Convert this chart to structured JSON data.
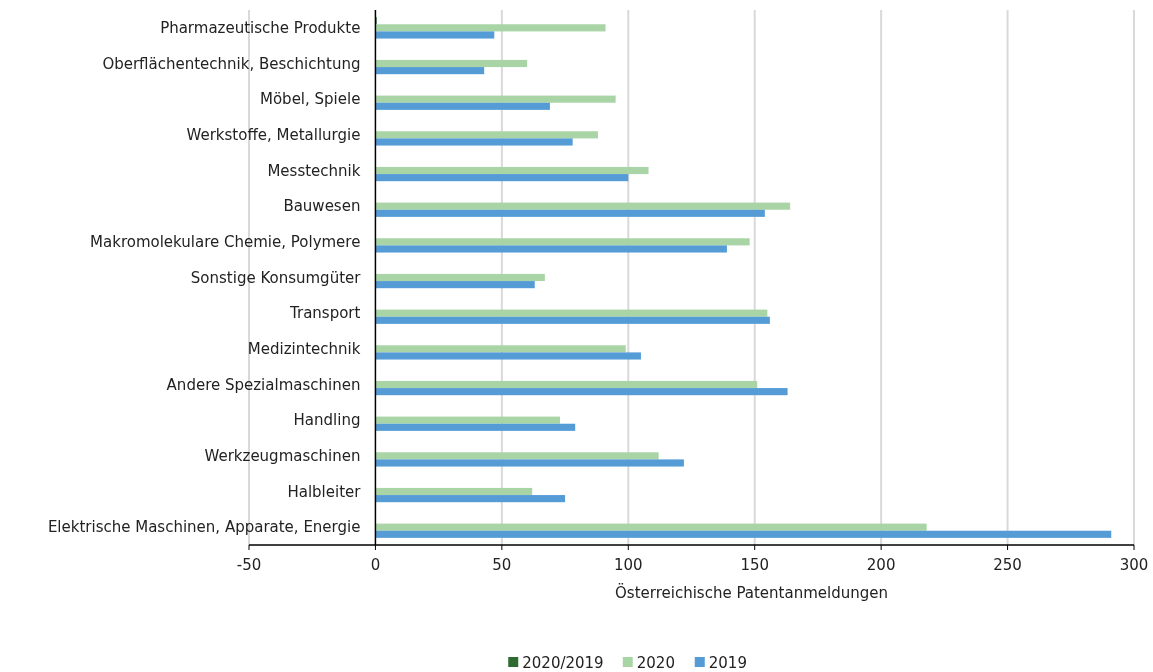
{
  "chart_data": {
    "type": "bar",
    "orientation": "horizontal",
    "xlabel": "Österreichische Patentanmeldungen",
    "categories": [
      "Pharmazeutische Produkte",
      "Oberflächentechnik, Beschichtung",
      "Möbel, Spiele",
      "Werkstoffe, Metallurgie",
      "Messtechnik",
      "Bauwesen",
      "Makromolekulare Chemie, Polymere",
      "Sonstige Konsumgüter",
      "Transport",
      "Medizintechnik",
      "Andere Spezialmaschinen",
      "Handling",
      "Werkzeugmaschinen",
      "Halbleiter",
      "Elektrische Maschinen, Apparate, Energie"
    ],
    "series": [
      {
        "name": "2020/2019",
        "color": "#2e6b30",
        "values": [
          0.5,
          null,
          null,
          null,
          null,
          null,
          null,
          null,
          null,
          null,
          null,
          null,
          null,
          null,
          null
        ]
      },
      {
        "name": "2020",
        "color": "#a9d5a6",
        "values": [
          91,
          60,
          95,
          88,
          108,
          164,
          148,
          67,
          155,
          99,
          151,
          73,
          112,
          62,
          218
        ]
      },
      {
        "name": "2019",
        "color": "#559bd6",
        "values": [
          47,
          43,
          69,
          78,
          100,
          154,
          139,
          63,
          156,
          105,
          163,
          79,
          122,
          75,
          291
        ]
      }
    ],
    "xlim": [
      -50,
      300
    ],
    "xticks": [
      -50,
      0,
      50,
      100,
      150,
      200,
      250,
      300
    ],
    "grid": "x",
    "legend": "bottom"
  }
}
